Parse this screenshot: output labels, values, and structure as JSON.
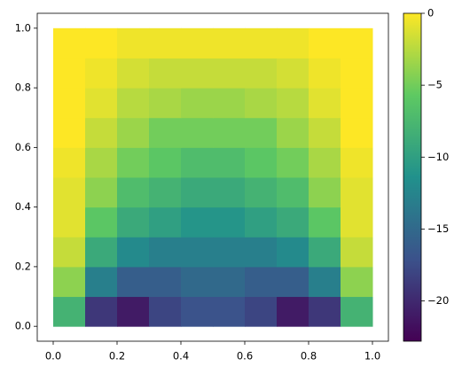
{
  "chart_data": {
    "type": "heatmap",
    "x": [
      0.05,
      0.15,
      0.25,
      0.35,
      0.45,
      0.55,
      0.65,
      0.75,
      0.85,
      0.95
    ],
    "y": [
      0.05,
      0.15,
      0.25,
      0.35,
      0.45,
      0.55,
      0.65,
      0.75,
      0.85,
      0.95
    ],
    "values": [
      [
        -8,
        -19,
        -21,
        -18,
        -17,
        -17,
        -18,
        -21,
        -19,
        -8
      ],
      [
        -4,
        -13,
        -16,
        -16,
        -15,
        -15,
        -16,
        -16,
        -13,
        -4
      ],
      [
        -2,
        -9,
        -12,
        -13,
        -13,
        -13,
        -13,
        -12,
        -9,
        -2
      ],
      [
        -1,
        -6,
        -9,
        -10,
        -11,
        -11,
        -10,
        -9,
        -6,
        -1
      ],
      [
        -1,
        -4,
        -7,
        -8,
        -9,
        -9,
        -8,
        -7,
        -4,
        -1
      ],
      [
        -0.5,
        -3,
        -5,
        -6,
        -7,
        -7,
        -6,
        -5,
        -3,
        -0.5
      ],
      [
        0,
        -2,
        -3.5,
        -5,
        -5,
        -5,
        -5,
        -3.5,
        -2,
        0
      ],
      [
        0,
        -1,
        -2.5,
        -3,
        -3.5,
        -3.5,
        -3,
        -2.5,
        -1,
        0
      ],
      [
        0,
        -0.5,
        -1.5,
        -2,
        -2,
        -2,
        -2,
        -1.5,
        -0.5,
        0
      ],
      [
        0,
        0,
        -0.5,
        -0.5,
        -0.5,
        -0.5,
        -0.5,
        -0.5,
        0,
        0
      ]
    ],
    "colormap": "viridis",
    "xlim": [
      -0.05,
      1.05
    ],
    "ylim": [
      -0.05,
      1.05
    ],
    "xticks": [
      {
        "value": 0,
        "label": "0.0"
      },
      {
        "value": 0.2,
        "label": "0.2"
      },
      {
        "value": 0.4,
        "label": "0.4"
      },
      {
        "value": 0.6,
        "label": "0.6"
      },
      {
        "value": 0.8,
        "label": "0.8"
      },
      {
        "value": 1,
        "label": "1.0"
      }
    ],
    "yticks": [
      {
        "value": 0,
        "label": "0.0"
      },
      {
        "value": 0.2,
        "label": "0.2"
      },
      {
        "value": 0.4,
        "label": "0.4"
      },
      {
        "value": 0.6,
        "label": "0.6"
      },
      {
        "value": 0.8,
        "label": "0.8"
      },
      {
        "value": 1,
        "label": "1.0"
      }
    ],
    "clim": [
      -22.8,
      0
    ],
    "cticks": [
      0,
      {
        "value": -5,
        "label": "−5"
      },
      {
        "value": -10,
        "label": "−10"
      },
      {
        "value": -15,
        "label": "−15"
      },
      {
        "value": -20,
        "label": "−20"
      }
    ]
  }
}
